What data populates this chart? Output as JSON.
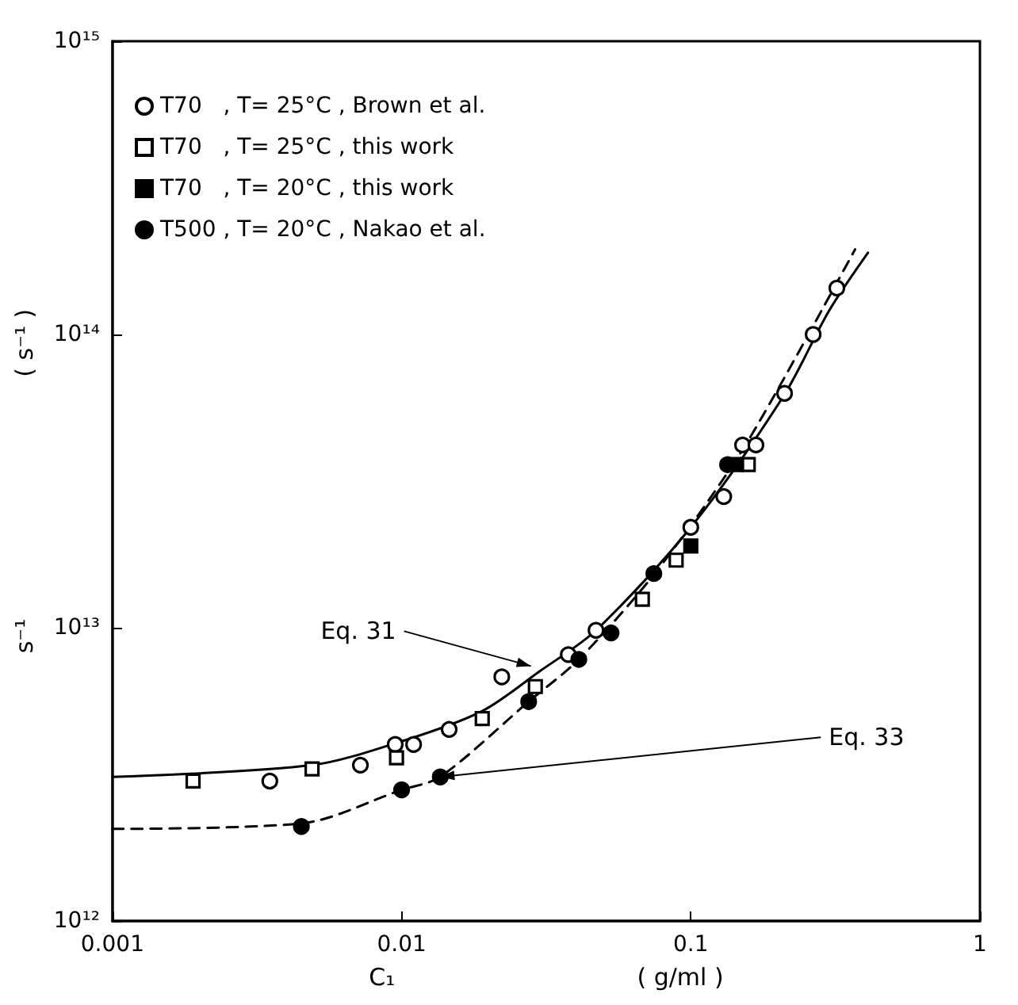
{
  "chart_data": {
    "type": "scatter",
    "xlabel": "C₁                                ( g/ml )",
    "ylabel": "s⁻¹                                ( s⁻¹ )",
    "log": "xy",
    "grid": false,
    "legend": "top left",
    "xlim": [
      0.001,
      1
    ],
    "xticks": [
      0.001,
      0.01,
      0.1,
      1
    ],
    "ylim": [
      1000000000000.0,
      1000000000000000.0
    ],
    "yticks": [
      {
        "value": 1000000000000.0,
        "label": "10¹²"
      },
      {
        "value": 10000000000000.0,
        "label": "10¹³"
      },
      {
        "value": 100000000000000.0,
        "label": "10¹⁴"
      },
      {
        "value": 1000000000000000.0,
        "label": "10¹⁵"
      }
    ],
    "series": [
      {
        "name": "T70   , T= 25°C , Brown et al.",
        "marker": "circle",
        "color": "#000000",
        "x": [
          0.0035,
          0.0072,
          0.0095,
          0.011,
          0.0146,
          0.0222,
          0.0377,
          0.047,
          0.1,
          0.13,
          0.151,
          0.168,
          0.211,
          0.265,
          0.32
        ],
        "values": [
          3000000000000.0,
          3400000000000.0,
          4000000000000.0,
          4000000000000.0,
          4500000000000.0,
          6800000000000.0,
          8100000000000.0,
          9800000000000.0,
          22000000000000.0,
          28000000000000.0,
          42000000000000.0,
          42000000000000.0,
          63000000000000.0,
          100000000000000.0,
          144000000000000.0
        ]
      },
      {
        "name": "T70   , T= 25°C , this work",
        "marker": "square",
        "color": "#000000",
        "x": [
          0.0019,
          0.0049,
          0.0096,
          0.019,
          0.029,
          0.068,
          0.089,
          0.158
        ],
        "values": [
          3000000000000.0,
          3300000000000.0,
          3600000000000.0,
          4900000000000.0,
          6300000000000.0,
          12500000000000.0,
          17000000000000.0,
          36000000000000.0
        ]
      },
      {
        "name": "T70   , T= 20°C , this work",
        "marker": "square",
        "color": "#000000",
        "x": [
          0.1,
          0.144
        ],
        "values": [
          19000000000000.0,
          36000000000000.0
        ]
      },
      {
        "name": "T500 , T= 20°C , Nakao et al.",
        "marker": "circle",
        "color": "#000000",
        "x": [
          0.0045,
          0.01,
          0.0136,
          0.0275,
          0.041,
          0.053,
          0.0745,
          0.134
        ],
        "values": [
          2100000000000.0,
          2800000000000.0,
          3100000000000.0,
          5600000000000.0,
          7800000000000.0,
          9600000000000.0,
          15300000000000.0,
          36000000000000.0
        ]
      },
      {
        "type": "line",
        "marker": "none",
        "line_style": "solid",
        "color": "#000000",
        "x": [
          0.001,
          0.0049,
          0.01,
          0.019,
          0.03,
          0.047,
          0.1,
          0.21,
          0.3,
          0.41
        ],
        "values": [
          3100000000000.0,
          3400000000000.0,
          4100000000000.0,
          5200000000000.0,
          7100000000000.0,
          9800000000000.0,
          22000000000000.0,
          62000000000000.0,
          120000000000000.0,
          190000000000000.0
        ]
      },
      {
        "type": "line",
        "marker": "none",
        "line_style": "dashed",
        "color": "#000000",
        "x": [
          0.001,
          0.0045,
          0.01,
          0.0136,
          0.0275,
          0.041,
          0.075,
          0.14,
          0.2,
          0.37
        ],
        "values": [
          2060000000000.0,
          2150000000000.0,
          2800000000000.0,
          3100000000000.0,
          5600000000000.0,
          7800000000000.0,
          15300000000000.0,
          36000000000000.0,
          65000000000000.0,
          195000000000000.0
        ]
      }
    ],
    "annotations": [
      {
        "text": "Eq. 31",
        "x": 0.028,
        "y": 7400000000000.0
      },
      {
        "text": "Eq. 33",
        "x": 0.0136,
        "y": 3100000000000.0
      }
    ]
  }
}
